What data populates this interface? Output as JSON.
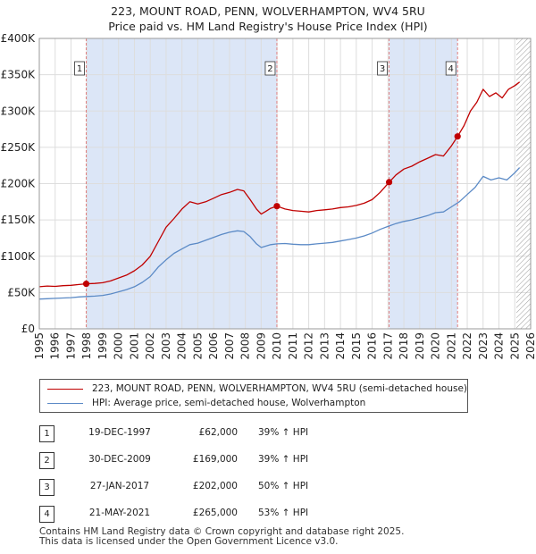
{
  "title": {
    "line1": "223, MOUNT ROAD, PENN, WOLVERHAMPTON, WV4 5RU",
    "line2": "Price paid vs. HM Land Registry's House Price Index (HPI)"
  },
  "colors": {
    "price_line": "#c00000",
    "hpi_line": "#5b8ac6",
    "shade": "#dce6f7",
    "marker_line": "#e08080",
    "grid": "#dddddd"
  },
  "chart_data": {
    "type": "line",
    "title": "223, MOUNT ROAD, PENN, WOLVERHAMPTON, WV4 5RU — Price paid vs. HM Land Registry's House Price Index (HPI)",
    "xlabel": "",
    "ylabel": "",
    "xlim": [
      1995,
      2026
    ],
    "ylim": [
      0,
      400000
    ],
    "y_ticks": [
      0,
      50000,
      100000,
      150000,
      200000,
      250000,
      300000,
      350000,
      400000
    ],
    "y_tick_labels": [
      "£0",
      "£50K",
      "£100K",
      "£150K",
      "£200K",
      "£250K",
      "£300K",
      "£350K",
      "£400K"
    ],
    "x_ticks": [
      1995,
      1996,
      1997,
      1998,
      1999,
      2000,
      2001,
      2002,
      2003,
      2004,
      2005,
      2006,
      2007,
      2008,
      2009,
      2010,
      2011,
      2012,
      2013,
      2014,
      2015,
      2016,
      2017,
      2018,
      2019,
      2020,
      2021,
      2022,
      2023,
      2024,
      2025,
      2026
    ],
    "x_tick_labels": [
      "1995",
      "1996",
      "1997",
      "1998",
      "1999",
      "2000",
      "2001",
      "2002",
      "2003",
      "2004",
      "2005",
      "2006",
      "2007",
      "2008",
      "2009",
      "2010",
      "2011",
      "2012",
      "2013",
      "2014",
      "2015",
      "2016",
      "2017",
      "2018",
      "2019",
      "2020",
      "2021",
      "2022",
      "2023",
      "2024",
      "2025",
      "2026"
    ],
    "grid": true,
    "future_hatch_from": 2025.1,
    "shaded_periods": [
      [
        1997.96,
        2009.99
      ],
      [
        2017.07,
        2021.39
      ]
    ],
    "series": [
      {
        "name": "223, MOUNT ROAD, PENN, WOLVERHAMPTON, WV4 5RU (semi-detached house)",
        "color": "#c00000",
        "x": [
          1995.0,
          1995.5,
          1996.0,
          1996.5,
          1997.0,
          1997.5,
          1997.96,
          1998.5,
          1999.0,
          1999.5,
          2000.0,
          2000.5,
          2001.0,
          2001.5,
          2002.0,
          2002.5,
          2003.0,
          2003.5,
          2004.0,
          2004.5,
          2005.0,
          2005.5,
          2006.0,
          2006.5,
          2007.0,
          2007.5,
          2007.9,
          2008.3,
          2008.7,
          2009.0,
          2009.3,
          2009.6,
          2009.99,
          2010.5,
          2011.0,
          2011.5,
          2012.0,
          2012.5,
          2013.0,
          2013.5,
          2014.0,
          2014.5,
          2015.0,
          2015.5,
          2016.0,
          2016.5,
          2017.07,
          2017.5,
          2018.0,
          2018.5,
          2019.0,
          2019.5,
          2020.0,
          2020.5,
          2021.0,
          2021.39,
          2021.8,
          2022.2,
          2022.6,
          2023.0,
          2023.4,
          2023.8,
          2024.2,
          2024.6,
          2025.0,
          2025.3
        ],
        "y": [
          58000,
          59000,
          58500,
          59500,
          60000,
          61000,
          62000,
          62500,
          63500,
          66000,
          70000,
          74000,
          80000,
          88000,
          100000,
          120000,
          140000,
          152000,
          165000,
          175000,
          172000,
          175000,
          180000,
          185000,
          188000,
          192000,
          190000,
          178000,
          165000,
          158000,
          162000,
          166000,
          169000,
          165000,
          163000,
          162000,
          161000,
          163000,
          164000,
          165000,
          167000,
          168000,
          170000,
          173000,
          178000,
          188000,
          202000,
          212000,
          220000,
          224000,
          230000,
          235000,
          240000,
          238000,
          252000,
          265000,
          280000,
          300000,
          312000,
          330000,
          320000,
          325000,
          318000,
          330000,
          335000,
          340000
        ]
      },
      {
        "name": "HPI: Average price, semi-detached house, Wolverhampton",
        "color": "#5b8ac6",
        "x": [
          1995.0,
          1995.5,
          1996.0,
          1996.5,
          1997.0,
          1997.5,
          1998.0,
          1998.5,
          1999.0,
          1999.5,
          2000.0,
          2000.5,
          2001.0,
          2001.5,
          2002.0,
          2002.5,
          2003.0,
          2003.5,
          2004.0,
          2004.5,
          2005.0,
          2005.5,
          2006.0,
          2006.5,
          2007.0,
          2007.5,
          2007.9,
          2008.3,
          2008.7,
          2009.0,
          2009.3,
          2009.6,
          2010.0,
          2010.5,
          2011.0,
          2011.5,
          2012.0,
          2012.5,
          2013.0,
          2013.5,
          2014.0,
          2014.5,
          2015.0,
          2015.5,
          2016.0,
          2016.5,
          2017.0,
          2017.5,
          2018.0,
          2018.5,
          2019.0,
          2019.5,
          2020.0,
          2020.5,
          2021.0,
          2021.5,
          2022.0,
          2022.5,
          2023.0,
          2023.5,
          2024.0,
          2024.5,
          2025.0,
          2025.3
        ],
        "y": [
          41000,
          41500,
          42000,
          42500,
          43000,
          44000,
          44500,
          45000,
          46000,
          48000,
          51000,
          54000,
          58000,
          64000,
          72000,
          85000,
          95000,
          104000,
          110000,
          116000,
          118000,
          122000,
          126000,
          130000,
          133000,
          135000,
          134000,
          127000,
          117000,
          112000,
          114000,
          116000,
          117000,
          117500,
          116500,
          116000,
          116000,
          117000,
          118000,
          119000,
          121000,
          123000,
          125000,
          128000,
          132000,
          137000,
          141000,
          145000,
          148000,
          150000,
          153000,
          156000,
          160000,
          161000,
          168000,
          175000,
          185000,
          195000,
          210000,
          205000,
          208000,
          205000,
          215000,
          222000
        ]
      }
    ],
    "sale_markers": [
      {
        "label": "1",
        "x": 1997.96,
        "y": 62000
      },
      {
        "label": "2",
        "x": 2009.99,
        "y": 169000
      },
      {
        "label": "3",
        "x": 2017.07,
        "y": 202000
      },
      {
        "label": "4",
        "x": 2021.39,
        "y": 265000
      }
    ]
  },
  "legend": {
    "price_label": "223, MOUNT ROAD, PENN, WOLVERHAMPTON, WV4 5RU (semi-detached house)",
    "hpi_label": "HPI: Average price, semi-detached house, Wolverhampton"
  },
  "sales": [
    {
      "num": "1",
      "date": "19-DEC-1997",
      "price": "£62,000",
      "hpi": "39% ↑ HPI"
    },
    {
      "num": "2",
      "date": "30-DEC-2009",
      "price": "£169,000",
      "hpi": "39% ↑ HPI"
    },
    {
      "num": "3",
      "date": "27-JAN-2017",
      "price": "£202,000",
      "hpi": "50% ↑ HPI"
    },
    {
      "num": "4",
      "date": "21-MAY-2021",
      "price": "£265,000",
      "hpi": "53% ↑ HPI"
    }
  ],
  "footer": {
    "line1": "Contains HM Land Registry data © Crown copyright and database right 2025.",
    "line2": "This data is licensed under the Open Government Licence v3.0."
  }
}
